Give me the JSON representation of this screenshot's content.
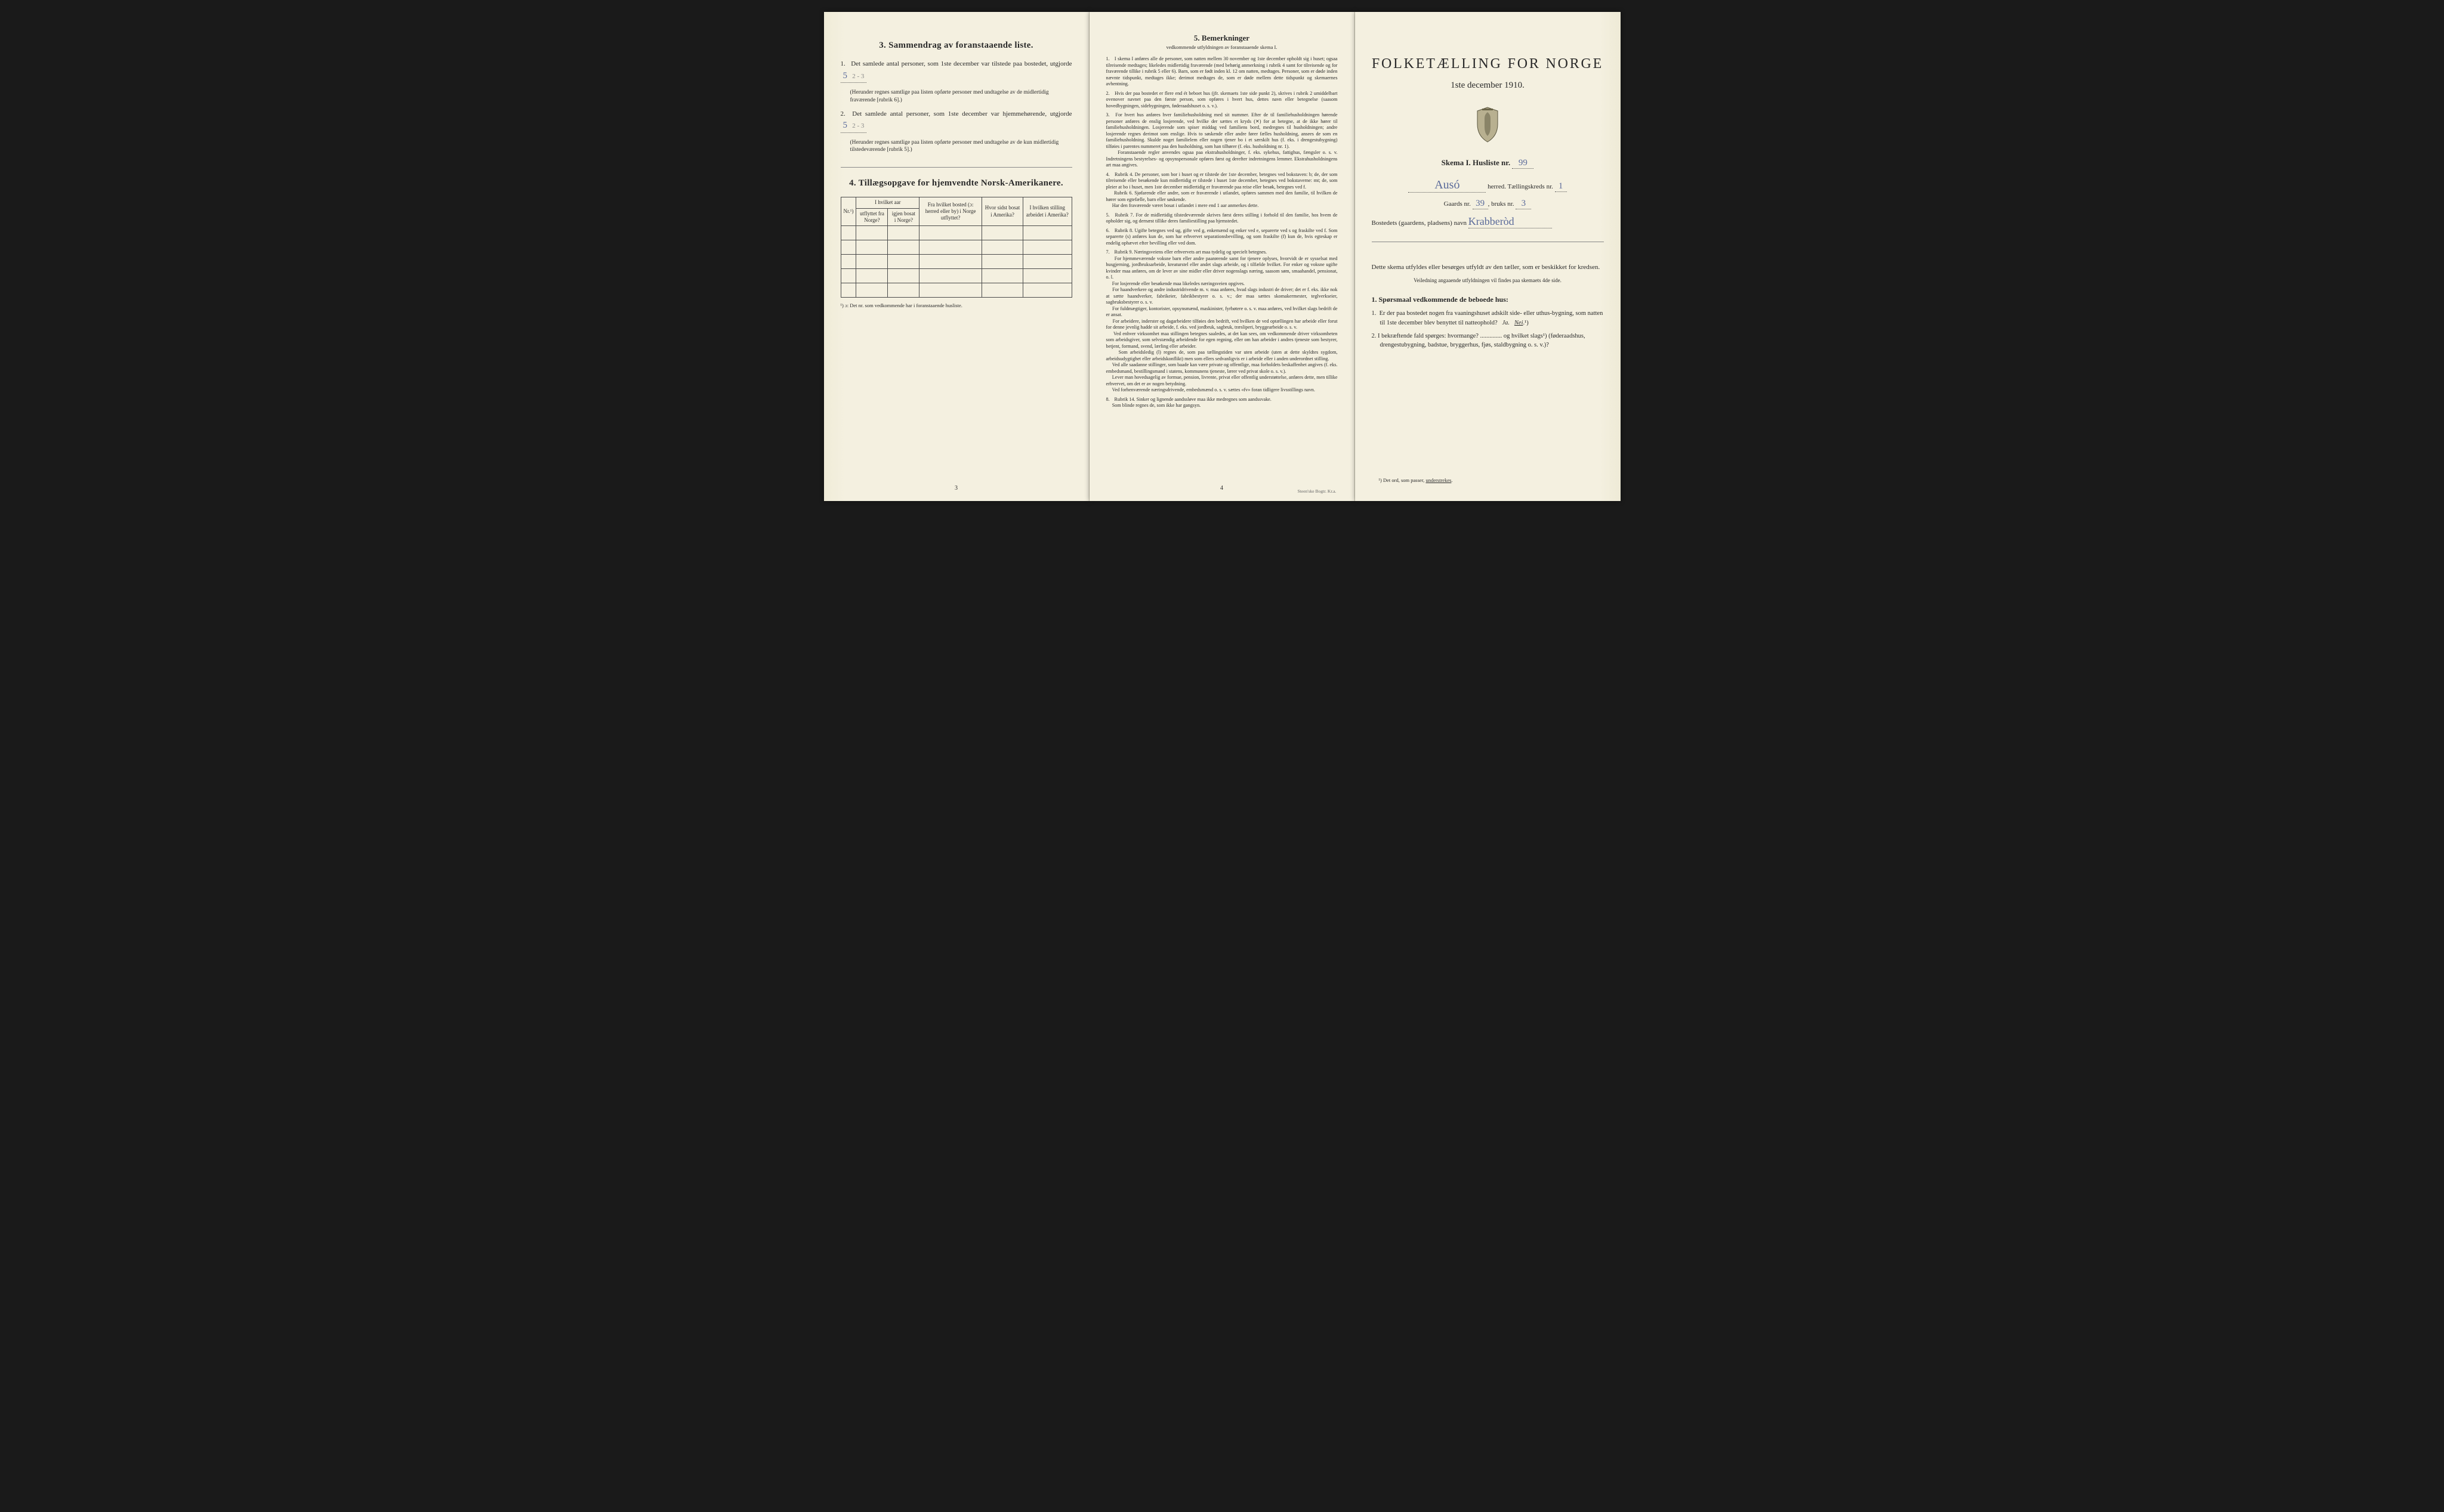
{
  "colors": {
    "paper": "#f4f0e0",
    "ink": "#2a2a2a",
    "handwriting": "#5a6a9a",
    "pencil": "#888888",
    "border": "#4a4a4a"
  },
  "leftPage": {
    "section3": {
      "title": "3.   Sammendrag av foranstaaende liste.",
      "item1_pre": "Det samlede antal personer, som 1ste december var tilstede paa bostedet, utgjorde",
      "item1_val_hw": "5",
      "item1_val_pencil": "2 - 3",
      "item1_paren": "(Herunder regnes samtlige paa listen opførte personer med undtagelse av de midlertidig fraværende [rubrik 6].)",
      "item2_pre": "Det samlede antal personer, som 1ste december var hjemmehørende, utgjorde",
      "item2_val_hw": "5",
      "item2_val_pencil": "2 - 3",
      "item2_paren": "(Herunder regnes samtlige paa listen opførte personer med undtagelse av de kun midlertidig tilstedeværende [rubrik 5].)"
    },
    "section4": {
      "title": "4.  Tillægsopgave for hjemvendte Norsk-Amerikanere.",
      "headers": {
        "nr": "Nr.¹)",
        "aar_group": "I hvilket aar",
        "utflyttet": "utflyttet fra Norge?",
        "igjen": "igjen bosat i Norge?",
        "fra_bosted": "Fra hvilket bosted (ɔ: herred eller by) i Norge utflyttet?",
        "hvor_sidst": "Hvor sidst bosat i Amerika?",
        "stilling": "I hvilken stilling arbeidet i Amerika?"
      },
      "rows": 5,
      "footnote": "¹) ɔ: Det nr. som vedkommende har i foranstaaende husliste."
    },
    "pageNum": "3"
  },
  "middlePage": {
    "heading": "5.   Bemerkninger",
    "subtitle": "vedkommende utfyldningen av foranstaaende skema I.",
    "items": [
      "I skema I anføres alle de personer, som natten mellem 30 november og 1ste december opholdt sig i huset; ogsaa tilreisende medtages; likeledes midlertidig fraværende (med behørig anmerkning i rubrik 4 samt for tilreisende og for fraværende tillike i rubrik 5 eller 6). Barn, som er født inden kl. 12 om natten, medtages. Personer, som er døde inden nævnte tidspunkt, medtages ikke; derimot medtages de, som er døde mellem dette tidspunkt og skemaernes avhentning.",
      "Hvis der paa bostedet er flere end ét beboet hus (jfr. skemaets 1ste side punkt 2), skrives i rubrik 2 umiddelbart ovenover navnet paa den første person, som opføres i hvert hus, dettes navn eller betegnelse (saasom hovedbygningen, sidebygningen, føderaadshuset o. s. v.).",
      "For hvert hus anføres hver familiehusholdning med sit nummer. Efter de til familiehusholdningen hørende personer anføres de enslig losjerende, ved hvilke der sættes et kryds (✕) for at betegne, at de ikke hører til familiehusholdningen. Losjerende som spiser middag ved familiens bord, medregnes til husholdningen; andre losjerende regnes derimot som enslige. Hvis to søskende eller andre fører fælles husholdning, ansees de som en familiehusholdning. Skulde noget familielem eller nogen tjener bo i et særskilt hus (f. eks. i drengestubygning) tilføies i parentes nummeret paa den husholdning, som han tilhører (f. eks. husholdning nr. 1).\n    Foranstaaende regler anvendes ogsaa paa ekstrahusholdninger, f. eks. sykehus, fattighus, fængsler o. s. v. Indretningens bestyrelses- og opsynspersonale opføres først og derefter indretningens lemmer. Ekstrahusholdningens art maa angives.",
      "Rubrik 4. De personer, som bor i huset og er tilstede der 1ste december, betegnes ved bokstaven: b; de, der som tilreisende eller besøkende kun midlertidig er tilstede i huset 1ste december, betegnes ved bokstaverne: mt; de, som pleier at bo i huset, men 1ste december midlertidig er fraværende paa reise eller besøk, betegnes ved f.\n    Rubrik 6. Sjøfarende eller andre, som er fraværende i utlandet, opføres sammen med den familie, til hvilken de hører som egtefælle, barn eller søskende.\n    Har den fraværende været bosat i utlandet i mere end 1 aar anmerkes dette.",
      "Rubrik 7. For de midlertidig tilstedeværende skrives først deres stilling i forhold til den familie, hos hvem de opholder sig, og dernæst tillike deres familiestilling paa hjemstedet.",
      "Rubrik 8. Ugifte betegnes ved ug, gifte ved g, enkemænd og enker ved e, separerte ved s og fraskilte ved f. Som separerte (s) anføres kun de, som har erhvervet separationsbevilling, og som fraskilte (f) kun de, hvis egteskap er endelig ophævet efter bevilling eller ved dom.",
      "Rubrik 9. Næringsveiens eller erhvervets art maa tydelig og specielt betegnes.\n    For hjemmeværende voksne barn eller andre paarørende samt for tjenere oplyses, hvorvidt de er sysselsat med husgjerning, jordbruksarbeide, kreaturstel eller andet slags arbeide, og i tilfælde hvilket. For enker og voksne ugifte kvinder maa anføres, om de lever av sine midler eller driver nogenslags næring, saasom søm, smaahandel, pensionat, o. l.\n    For losjerende eller besøkende maa likeledes næringsveien opgives.\n    For haandverkere og andre industridrivende m. v. maa anføres, hvad slags industri de driver; det er f. eks. ikke nok at sætte haandverker, fabrikeier, fabrikbestyrer o. s. v.; der maa sættes skomakermester, teglverkseier, sagbruksbestyrer o. s. v.\n    For fuldmægtiger, kontorister, opsynsmænd, maskinister, fyrbøtere o. s. v. maa anføres, ved hvilket slags bedrift de er ansat.\n    For arbeidere, inderster og dagarbeidere tilføies den bedrift, ved hvilken de ved optællingen har arbeide eller forut for denne jevnlig hadde sit arbeide, f. eks. ved jordbruk, sagbruk, træsliperi, bryggearbeide o. s. v.\n    Ved enhver virksomhet maa stillingen betegnes saaledes, at det kan sees, om vedkommende driver virksomheten som arbeidsgiver, som selvstændig arbeidende for egen regning, eller om han arbeider i andres tjeneste som bestyrer, betjent, formand, svend, lærling eller arbeider.\n    Som arbeidsledig (l) regnes de, som paa tællingstiden var uten arbeide (uten at dette skyldtes sygdom, arbeidsudygtighet eller arbeidskonflikt) men som ellers sedvanligvis er i arbeide eller i anden underordnet stilling.\n    Ved alle saadanne stillinger, som baade kan være private og offentlige, maa forholdets beskaffenhet angives (f. eks. embedsmand, bestillingsmand i statens, kommunens tjeneste, lærer ved privat skole o. s. v.).\n    Lever man hovedsagelig av formue, pension, livrente, privat eller offentlig understøttelse, anføres dette, men tillike erhvervet, om det er av nogen betydning.\n    Ved forhenværende næringsdrivende, embedsmænd o. s. v. sættes «fv» foran tidligere livsstillings navn.",
      "Rubrik 14. Sinker og lignende aandssløve maa ikke medregnes som aandssvake.\n    Som blinde regnes de, som ikke har gangsyn."
    ],
    "pageNum": "4",
    "printer": "Steen'ske Bogtr. Kr.a."
  },
  "rightPage": {
    "title": "FOLKETÆLLING FOR NORGE",
    "date": "1ste december 1910.",
    "skema_label": "Skema I.   Husliste nr.",
    "husliste_nr": "99",
    "herred_hw": "Ausó",
    "herred_label": "herred.  Tællingskreds nr.",
    "kreds_nr": "1",
    "gaards_label": "Gaards nr.",
    "gaards_nr": "39",
    "bruks_label": "bruks nr.",
    "bruks_nr": "3",
    "bosted_label": "Bostedets (gaardens, pladsens) navn",
    "bosted_hw": "Krabberòd",
    "instruction": "Dette skema utfyldes eller besørges utfyldt av den tæller, som er beskikket for kredsen.",
    "instruction_sub": "Veiledning angaaende utfyldningen vil findes paa skemaets 4de side.",
    "q_heading": "1. Spørsmaal vedkommende de beboede hus:",
    "q1": "1.  Er der paa bostedet nogen fra vaaningshuset adskilt side- eller uthus-bygning, som natten til 1ste december blev benyttet til natteophold?   Ja.   Nei.¹)",
    "q1_answer_underlined": "Nei",
    "q2": "2.  I bekræftende fald spørges: hvormange? .............. og hvilket slags¹) (føderaadshus, drengestubygning, badstue, bryggerhus, fjøs, staldbygning o. s. v.)?",
    "footnote": "¹) Det ord, som passer, understrekes."
  }
}
